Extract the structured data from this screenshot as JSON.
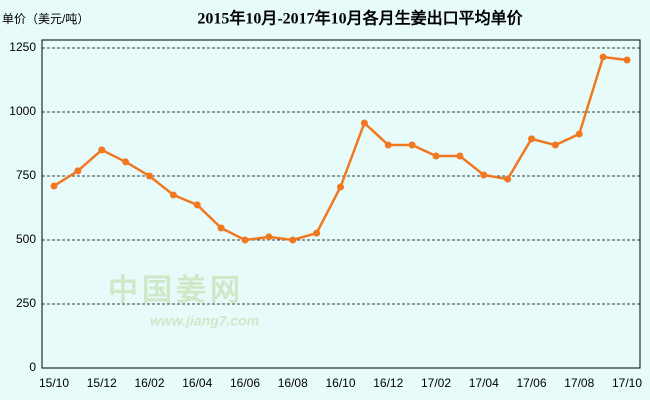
{
  "chart_data": {
    "type": "line",
    "title": "2015年10月-2017年10月各月生姜出口平均单价",
    "y_label": "单价（美元/吨）",
    "annotations": [
      "中国姜网",
      "www.jiang7.com"
    ],
    "categories": [
      "15/10",
      null,
      "15/12",
      null,
      "16/02",
      null,
      "16/04",
      null,
      "16/06",
      null,
      "16/08",
      null,
      "16/10",
      null,
      "16/12",
      null,
      "17/02",
      null,
      "17/04",
      null,
      "17/06",
      null,
      "17/08",
      null,
      "17/10"
    ],
    "series": [
      {
        "name": "平均单价",
        "color": "#f07820",
        "values": [
          711,
          770,
          852,
          805,
          750,
          676,
          637,
          547,
          500,
          512,
          500,
          527,
          707,
          957,
          871,
          871,
          828,
          828,
          754,
          738,
          895,
          871,
          914,
          1215,
          1203
        ]
      }
    ],
    "ylim": [
      0,
      1250
    ],
    "yticks": [
      0,
      250,
      500,
      750,
      1000,
      1250
    ],
    "grid": true
  }
}
